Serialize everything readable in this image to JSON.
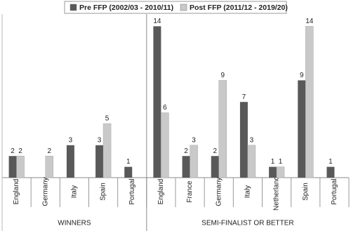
{
  "chart_data": {
    "type": "bar",
    "series": [
      {
        "name": "Pre FFP (2002/03 - 2010/11)",
        "color": "#595959"
      },
      {
        "name": "Post FFP (2011/12 - 2019/20)",
        "color": "#c9c9c9"
      }
    ],
    "ylim": [
      0,
      15
    ],
    "groups": [
      {
        "name": "WINNERS",
        "categories": [
          "England",
          "Germany",
          "Italy",
          "Spain",
          "Portugal"
        ],
        "values": [
          [
            2,
            null,
            3,
            3,
            1
          ],
          [
            2,
            2,
            null,
            5,
            null
          ]
        ]
      },
      {
        "name": "SEMI-FINALIST OR BETTER",
        "categories": [
          "England",
          "France",
          "Germany",
          "Italy",
          "Netherlands",
          "Spain",
          "Portugal"
        ],
        "values": [
          [
            14,
            2,
            2,
            7,
            1,
            9,
            1
          ],
          [
            6,
            3,
            9,
            3,
            1,
            14,
            null
          ]
        ]
      }
    ]
  }
}
